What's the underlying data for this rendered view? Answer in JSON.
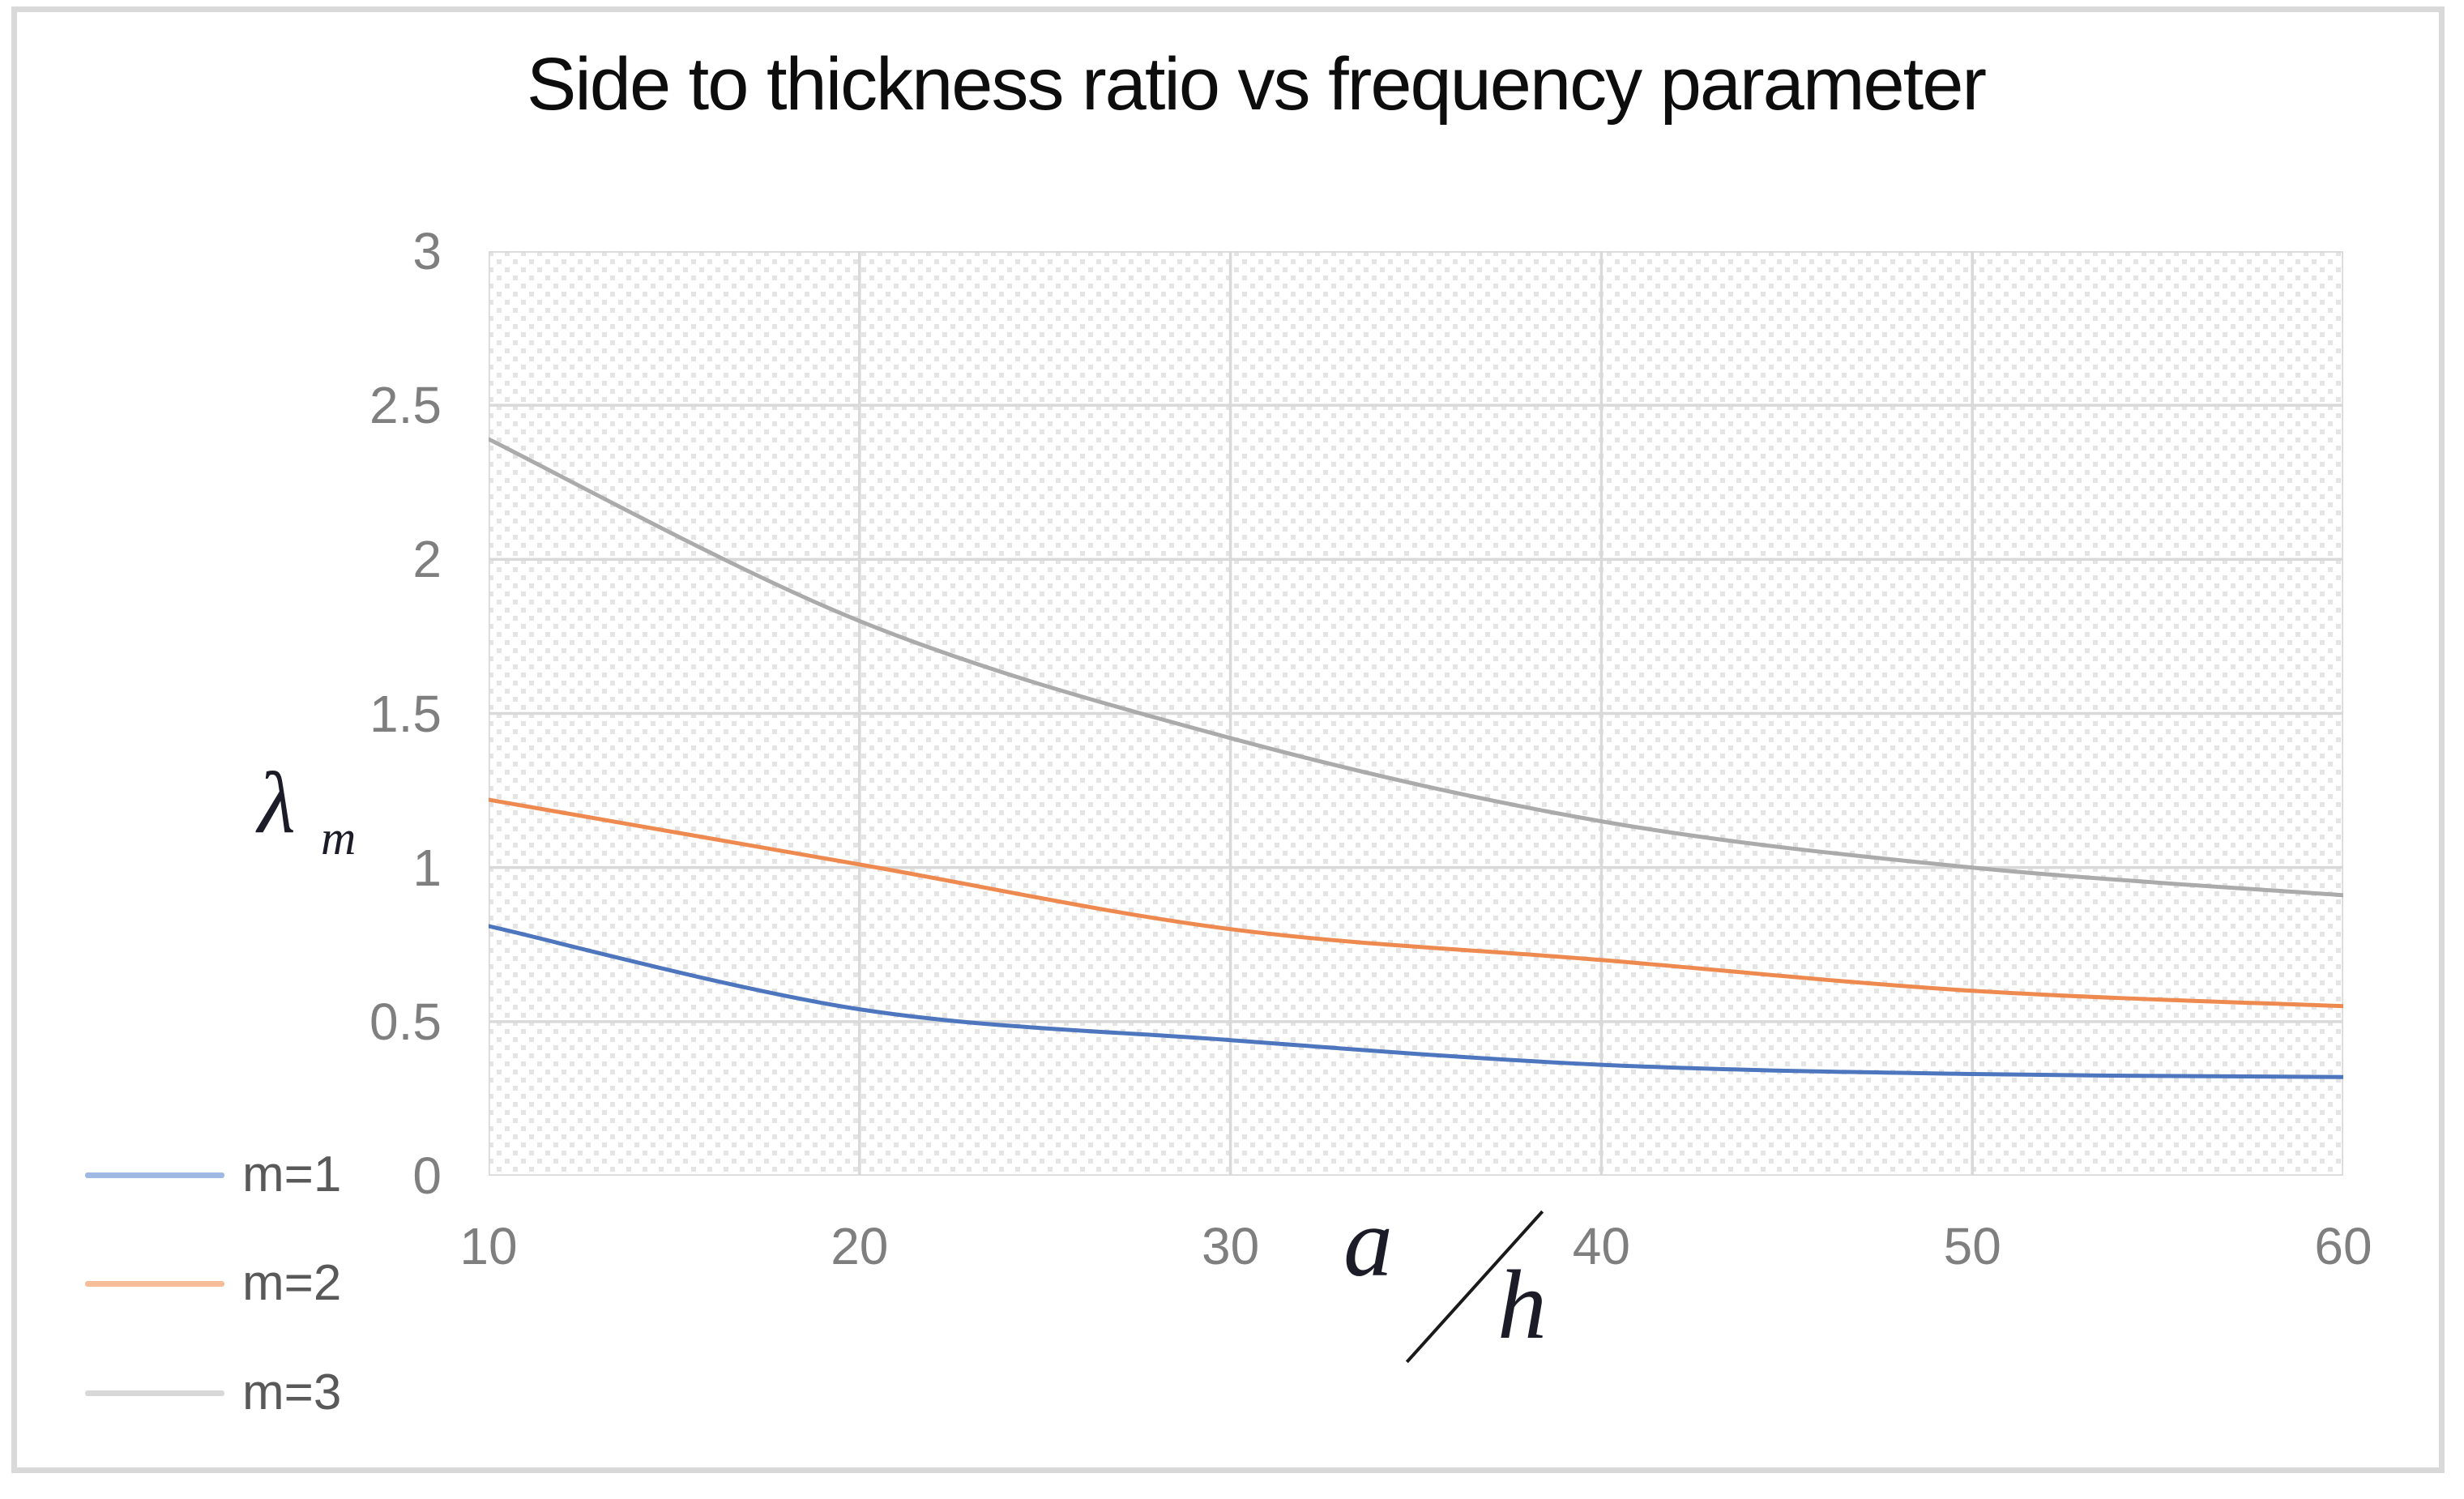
{
  "chart": {
    "title": "Side to thickness ratio vs frequency parameter",
    "y_axis": {
      "symbol": "λ",
      "subscript": "m",
      "ticks": [
        "3",
        "2.5",
        "2",
        "1.5",
        "1",
        "0.5",
        "0"
      ]
    },
    "x_axis": {
      "numerator": "a",
      "denominator": "h",
      "ticks": [
        "10",
        "20",
        "30",
        "40",
        "50",
        "60"
      ]
    },
    "legend": [
      {
        "label": "m=1",
        "swatch_color": "#9db9e4"
      },
      {
        "label": "m=2",
        "swatch_color": "#f7bd98"
      },
      {
        "label": "m=3",
        "swatch_color": "#d8d8d8"
      }
    ],
    "colors": {
      "gridline": "#d9d9d9",
      "hatch_dot": "#e4e4e4",
      "tick_text": "#7f7f7f",
      "legend_text": "#595959",
      "frame_border": "#d9d9d9"
    }
  },
  "chart_data": {
    "type": "line",
    "title": "Side to thickness ratio vs frequency parameter",
    "xlabel": "a/h",
    "ylabel": "λm",
    "x": [
      10,
      20,
      30,
      40,
      50,
      60
    ],
    "series": [
      {
        "name": "m=1",
        "color": "#4d76be",
        "values": [
          0.81,
          0.54,
          0.44,
          0.36,
          0.33,
          0.32
        ]
      },
      {
        "name": "m=2",
        "color": "#ee8a50",
        "values": [
          1.22,
          1.01,
          0.8,
          0.7,
          0.6,
          0.55
        ]
      },
      {
        "name": "m=3",
        "color": "#ababab",
        "values": [
          2.39,
          1.8,
          1.42,
          1.15,
          1.0,
          0.91
        ]
      }
    ],
    "xlim": [
      10,
      60
    ],
    "ylim": [
      0,
      3
    ],
    "x_tick_step": 10,
    "y_tick_step": 0.5,
    "grid": true,
    "legend_position": "bottom-left",
    "plot_area_fill": "diagonal-dot-hatch"
  }
}
